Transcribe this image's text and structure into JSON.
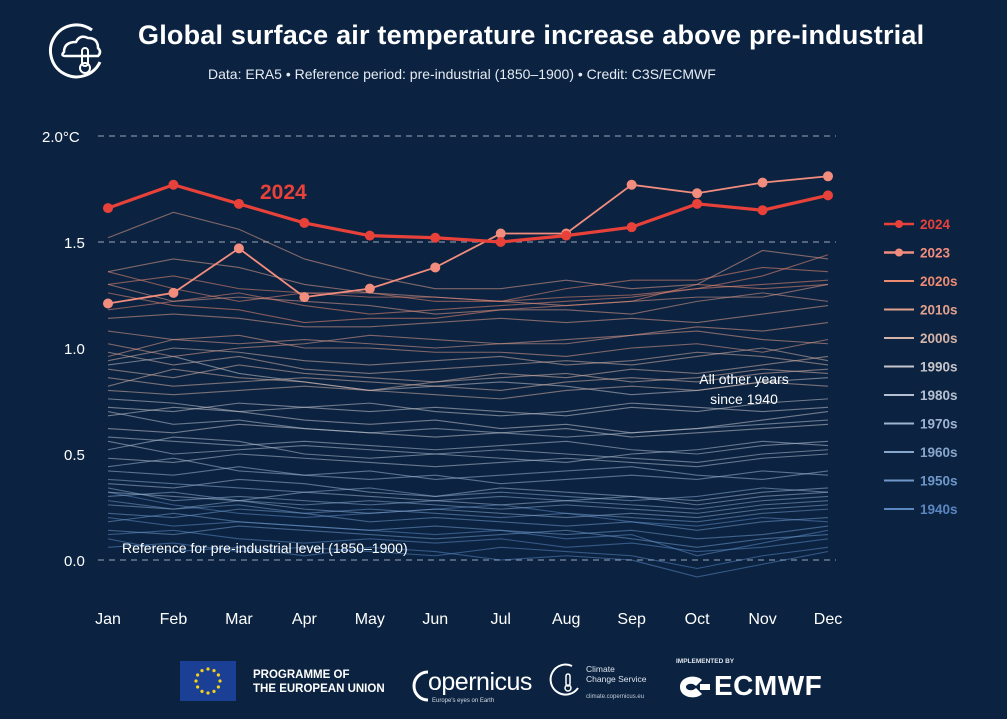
{
  "header": {
    "title": "Global surface air temperature increase above pre-industrial",
    "subtitle": "Data: ERA5 • Reference period: pre-industrial (1850–1900) • Credit: C3S/ECMWF"
  },
  "chart_data": {
    "type": "line",
    "title": "Global surface air temperature increase above pre-industrial",
    "ylabel": "°C",
    "ylim": [
      -0.12,
      2.05
    ],
    "categories": [
      "Jan",
      "Feb",
      "Mar",
      "Apr",
      "May",
      "Jun",
      "Jul",
      "Aug",
      "Sep",
      "Oct",
      "Nov",
      "Dec"
    ],
    "y_ticks": [
      {
        "value": 2.0,
        "label": "2.0°C"
      },
      {
        "value": 1.5,
        "label": "1.5"
      },
      {
        "value": 1.0,
        "label": "1.0"
      },
      {
        "value": 0.5,
        "label": "0.5"
      },
      {
        "value": 0.0,
        "label": "0.0"
      }
    ],
    "series": [
      {
        "name": "2024",
        "color": "#e8413a",
        "values": [
          1.66,
          1.77,
          1.68,
          1.59,
          1.53,
          1.52,
          1.5,
          1.53,
          1.57,
          1.68,
          1.65,
          1.72
        ]
      },
      {
        "name": "2023",
        "color": "#f28d7e",
        "values": [
          1.21,
          1.26,
          1.47,
          1.24,
          1.28,
          1.38,
          1.54,
          1.54,
          1.77,
          1.73,
          1.78,
          1.81
        ]
      }
    ],
    "decades": [
      {
        "name": "2020s",
        "color": "#ed8a72",
        "values": [
          [
            1.36,
            1.28,
            1.22,
            1.26,
            1.26,
            1.22,
            1.22,
            1.24,
            1.25,
            1.28,
            1.3,
            1.32
          ],
          [
            1.26,
            1.2,
            1.18,
            1.12,
            1.14,
            1.14,
            1.18,
            1.2,
            1.22,
            1.3,
            1.28,
            1.3
          ],
          [
            1.3,
            1.34,
            1.28,
            1.26,
            1.24,
            1.24,
            1.22,
            1.28,
            1.32,
            1.32,
            1.38,
            1.36
          ],
          [
            1.18,
            1.22,
            1.26,
            1.2,
            1.16,
            1.18,
            1.2,
            1.22,
            1.24,
            1.28,
            1.34,
            1.44
          ]
        ]
      },
      {
        "name": "2010s",
        "color": "#e3a08e",
        "values": [
          [
            1.52,
            1.64,
            1.56,
            1.42,
            1.34,
            1.28,
            1.28,
            1.32,
            1.28,
            1.3,
            1.46,
            1.42
          ],
          [
            1.36,
            1.42,
            1.38,
            1.3,
            1.26,
            1.24,
            1.22,
            1.2,
            1.22,
            1.24,
            1.24,
            1.3
          ],
          [
            1.3,
            1.22,
            1.24,
            1.22,
            1.2,
            1.16,
            1.18,
            1.18,
            1.16,
            1.22,
            1.26,
            1.22
          ],
          [
            1.14,
            1.16,
            1.14,
            1.1,
            1.1,
            1.12,
            1.14,
            1.12,
            1.14,
            1.12,
            1.16,
            1.2
          ],
          [
            1.08,
            1.04,
            1.02,
            1.04,
            1.02,
            1.0,
            1.02,
            1.04,
            1.06,
            1.1,
            1.08,
            1.12
          ],
          [
            0.96,
            1.04,
            1.06,
            1.0,
            1.0,
            0.98,
            0.98,
            0.96,
            1.0,
            1.02,
            0.98,
            1.04
          ],
          [
            1.02,
            0.96,
            1.0,
            1.02,
            1.06,
            1.04,
            1.02,
            1.02,
            1.06,
            1.08,
            1.04,
            1.02
          ]
        ]
      },
      {
        "name": "2000s",
        "color": "#d6b3a8",
        "values": [
          [
            0.98,
            0.92,
            0.96,
            0.9,
            0.88,
            0.9,
            0.92,
            0.94,
            0.92,
            0.96,
            1.0,
            0.94
          ],
          [
            0.9,
            0.86,
            0.92,
            0.88,
            0.86,
            0.84,
            0.88,
            0.86,
            0.9,
            0.88,
            0.92,
            0.96
          ],
          [
            0.94,
            1.0,
            0.98,
            0.94,
            0.92,
            0.94,
            0.96,
            0.92,
            0.94,
            0.98,
            0.96,
            0.92
          ],
          [
            0.86,
            0.82,
            0.84,
            0.86,
            0.84,
            0.82,
            0.8,
            0.84,
            0.86,
            0.84,
            0.88,
            0.9
          ],
          [
            0.82,
            0.9,
            0.86,
            0.84,
            0.8,
            0.84,
            0.86,
            0.88,
            0.84,
            0.86,
            0.9,
            0.88
          ],
          [
            0.8,
            0.78,
            0.8,
            0.82,
            0.8,
            0.78,
            0.76,
            0.8,
            0.82,
            0.8,
            0.84,
            0.82
          ]
        ]
      },
      {
        "name": "1990s",
        "color": "#c7c4cc",
        "values": [
          [
            0.92,
            0.96,
            0.88,
            0.84,
            0.8,
            0.82,
            0.84,
            0.82,
            0.78,
            0.8,
            0.84,
            0.86
          ],
          [
            0.72,
            0.7,
            0.74,
            0.72,
            0.7,
            0.72,
            0.7,
            0.68,
            0.72,
            0.7,
            0.74,
            0.76
          ],
          [
            0.68,
            0.72,
            0.7,
            0.66,
            0.64,
            0.66,
            0.62,
            0.64,
            0.6,
            0.62,
            0.66,
            0.7
          ],
          [
            0.76,
            0.74,
            0.7,
            0.72,
            0.74,
            0.7,
            0.68,
            0.7,
            0.74,
            0.72,
            0.7,
            0.72
          ],
          [
            0.62,
            0.6,
            0.64,
            0.62,
            0.6,
            0.58,
            0.6,
            0.62,
            0.58,
            0.6,
            0.62,
            0.64
          ]
        ]
      },
      {
        "name": "1980s",
        "color": "#b4c0d2",
        "values": [
          [
            0.7,
            0.64,
            0.66,
            0.62,
            0.6,
            0.62,
            0.6,
            0.58,
            0.6,
            0.62,
            0.64,
            0.66
          ],
          [
            0.58,
            0.56,
            0.54,
            0.56,
            0.54,
            0.52,
            0.54,
            0.56,
            0.52,
            0.5,
            0.54,
            0.56
          ],
          [
            0.52,
            0.58,
            0.56,
            0.5,
            0.48,
            0.5,
            0.52,
            0.5,
            0.48,
            0.46,
            0.5,
            0.52
          ],
          [
            0.48,
            0.46,
            0.5,
            0.48,
            0.46,
            0.44,
            0.46,
            0.48,
            0.46,
            0.44,
            0.48,
            0.5
          ],
          [
            0.56,
            0.5,
            0.52,
            0.54,
            0.52,
            0.5,
            0.48,
            0.46,
            0.5,
            0.52,
            0.56,
            0.54
          ]
        ]
      },
      {
        "name": "1970s",
        "color": "#9fb4cf",
        "values": [
          [
            0.42,
            0.4,
            0.44,
            0.4,
            0.38,
            0.4,
            0.36,
            0.38,
            0.4,
            0.38,
            0.42,
            0.4
          ],
          [
            0.36,
            0.34,
            0.38,
            0.36,
            0.32,
            0.3,
            0.34,
            0.32,
            0.3,
            0.28,
            0.32,
            0.34
          ],
          [
            0.44,
            0.48,
            0.42,
            0.4,
            0.42,
            0.38,
            0.4,
            0.42,
            0.44,
            0.4,
            0.38,
            0.42
          ],
          [
            0.32,
            0.3,
            0.28,
            0.32,
            0.3,
            0.28,
            0.26,
            0.28,
            0.3,
            0.26,
            0.3,
            0.32
          ]
        ]
      },
      {
        "name": "1960s",
        "color": "#87a6cc",
        "values": [
          [
            0.38,
            0.36,
            0.34,
            0.32,
            0.34,
            0.3,
            0.32,
            0.3,
            0.28,
            0.3,
            0.34,
            0.32
          ],
          [
            0.3,
            0.32,
            0.28,
            0.26,
            0.28,
            0.26,
            0.24,
            0.26,
            0.24,
            0.22,
            0.26,
            0.28
          ],
          [
            0.26,
            0.24,
            0.28,
            0.24,
            0.22,
            0.24,
            0.22,
            0.2,
            0.22,
            0.2,
            0.24,
            0.26
          ],
          [
            0.34,
            0.28,
            0.3,
            0.28,
            0.26,
            0.28,
            0.3,
            0.28,
            0.26,
            0.24,
            0.28,
            0.3
          ]
        ]
      },
      {
        "name": "1950s",
        "color": "#6f97c9",
        "values": [
          [
            0.22,
            0.2,
            0.24,
            0.22,
            0.18,
            0.2,
            0.18,
            0.16,
            0.18,
            0.14,
            0.18,
            0.2
          ],
          [
            0.18,
            0.22,
            0.18,
            0.16,
            0.14,
            0.16,
            0.14,
            0.12,
            0.14,
            0.1,
            0.12,
            0.16
          ],
          [
            0.28,
            0.24,
            0.26,
            0.22,
            0.24,
            0.22,
            0.2,
            0.22,
            0.2,
            0.18,
            0.22,
            0.24
          ],
          [
            0.14,
            0.12,
            0.16,
            0.14,
            0.12,
            0.1,
            0.12,
            0.14,
            0.1,
            0.06,
            0.1,
            0.12
          ]
        ]
      },
      {
        "name": "1940s",
        "color": "#5b86c2",
        "values": [
          [
            0.32,
            0.26,
            0.22,
            0.2,
            0.22,
            0.24,
            0.26,
            0.22,
            0.18,
            0.16,
            0.2,
            0.18
          ],
          [
            0.12,
            0.14,
            0.1,
            0.08,
            0.1,
            0.08,
            0.1,
            0.06,
            0.08,
            0.04,
            0.06,
            0.1
          ],
          [
            0.2,
            0.16,
            0.18,
            0.16,
            0.14,
            0.12,
            0.14,
            0.1,
            0.12,
            0.02,
            0.08,
            0.14
          ],
          [
            0.06,
            0.08,
            0.04,
            0.06,
            0.04,
            0.02,
            0.06,
            0.04,
            0.02,
            -0.04,
            0.02,
            0.06
          ],
          [
            0.1,
            0.04,
            0.06,
            0.02,
            0.06,
            0.04,
            0.0,
            0.02,
            0.0,
            -0.08,
            -0.02,
            0.04
          ]
        ]
      }
    ],
    "legend": [
      "2024",
      "2023",
      "2020s",
      "2010s",
      "2000s",
      "1990s",
      "1980s",
      "1970s",
      "1960s",
      "1950s",
      "1940s"
    ],
    "annotations": {
      "year_2024": "2024",
      "other_years": [
        "All other years",
        "since 1940"
      ],
      "reference": "Reference for pre-industrial level (1850–1900)"
    },
    "reference_lines": [
      2.0,
      1.5,
      0.0
    ],
    "legend_position": "right"
  },
  "footer": {
    "eu_line1": "PROGRAMME OF",
    "eu_line2": "THE EUROPEAN UNION",
    "copernicus": "opernicus",
    "copernicus_tagline": "Europe's eyes on Earth",
    "c3s_line1": "Climate",
    "c3s_line2": "Change Service",
    "c3s_url": "climate.copernicus.eu",
    "implemented_by": "IMPLEMENTED BY",
    "ecmwf": "ECMWF"
  },
  "colors": {
    "background": "#0b2340",
    "accent_2024": "#e8413a",
    "accent_2023": "#f28d7e"
  }
}
